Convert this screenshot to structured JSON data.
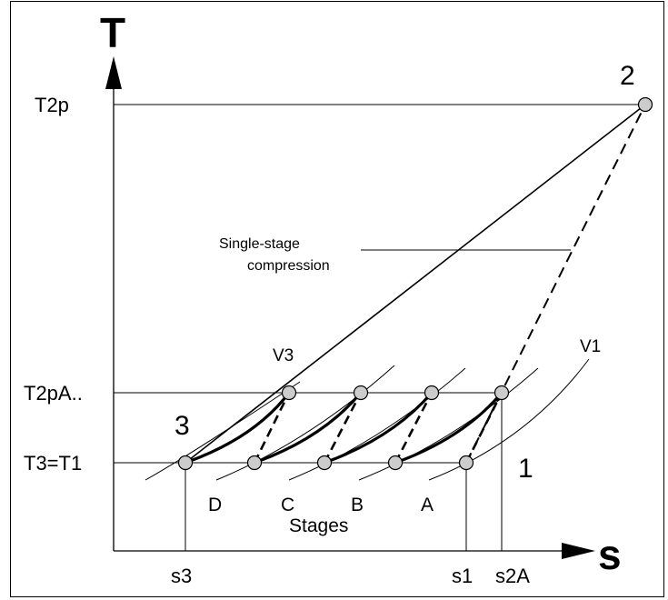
{
  "axes": {
    "y_axis_label": "T",
    "x_axis_label": "s"
  },
  "temperature_levels": {
    "t2p": "T2p",
    "t2pa": "T2pA..",
    "t3_t1": "T3=T1"
  },
  "entropy_ticks": {
    "s3": "s3",
    "s1": "s1",
    "s2a": "s2A"
  },
  "state_points": {
    "point_1": "1",
    "point_2": "2",
    "point_3": "3"
  },
  "isochores": {
    "v1": "V1",
    "v3": "V3"
  },
  "stages": {
    "title": "Stages",
    "labels": [
      "D",
      "C",
      "B",
      "A"
    ]
  },
  "annotation": {
    "line1": "Single-stage",
    "line2": "compression"
  },
  "colors": {
    "point_fill": "#cccccc",
    "line": "#000000"
  }
}
